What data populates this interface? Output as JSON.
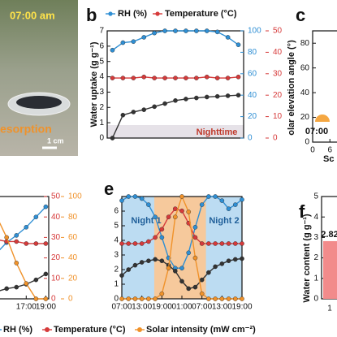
{
  "photo": {
    "time": "07:00 am",
    "label": "esorption",
    "scale": "1 cm"
  },
  "legend": [
    {
      "name": "RH (%)",
      "color": "#2f8fd4"
    },
    {
      "name": "Temperature (°C)",
      "color": "#d63a3a"
    },
    {
      "name": "Solar intensity (mW cm⁻²)",
      "color": "#f0922a"
    }
  ],
  "chart_data": [
    {
      "type": "line",
      "panel": "b",
      "ylabel": "Water uptake (g g⁻¹)",
      "annotations": [
        "Nighttime"
      ],
      "x": [
        0,
        1,
        2,
        3,
        4,
        5,
        6,
        7,
        8,
        9,
        10,
        11,
        12
      ],
      "xlim": [
        -0.5,
        12.5
      ],
      "ylim": [
        0,
        7
      ],
      "yticks": [
        0,
        1,
        2,
        3,
        4,
        5,
        6,
        7
      ],
      "y2lim": [
        0,
        100
      ],
      "y2ticks": [
        0,
        20,
        40,
        60,
        80,
        100
      ],
      "y2color": "#2f8fd4",
      "y3lim": [
        0,
        50
      ],
      "y3ticks": [
        0,
        10,
        20,
        30,
        40,
        50
      ],
      "y3color": "#d63a3a",
      "series": [
        {
          "name": "RH (%)",
          "color": "#2f8fd4",
          "axis": "y2",
          "values": [
            82,
            89,
            90,
            94,
            98,
            100,
            100,
            100,
            100,
            100,
            99,
            94,
            87
          ]
        },
        {
          "name": "Temperature (°C)",
          "color": "#d63a3a",
          "axis": "y3",
          "values": [
            28,
            28,
            28,
            28.5,
            28,
            28,
            28,
            28,
            28,
            28.5,
            28,
            28,
            28.5
          ]
        },
        {
          "color": "#333333",
          "axis": "y",
          "values": [
            0,
            1.5,
            1.7,
            1.85,
            2.05,
            2.25,
            2.45,
            2.55,
            2.62,
            2.68,
            2.72,
            2.76,
            2.8
          ]
        }
      ]
    },
    {
      "type": "line",
      "panel": "c",
      "ylabel": "olar elevation angle (°)",
      "xlabel": "Sc",
      "annotations": [
        "07:00"
      ],
      "xlim": [
        0,
        24
      ],
      "xticks": [
        0,
        6
      ],
      "ylim": [
        0,
        90
      ],
      "yticks": [
        0,
        20,
        40,
        60,
        80
      ],
      "series": []
    },
    {
      "type": "line",
      "x": [
        13,
        14,
        15,
        16,
        17,
        18,
        19
      ],
      "xlim": [
        11,
        19.3
      ],
      "xticks": [
        {
          "value": 17,
          "label": "17:00"
        },
        {
          "value": 19,
          "label": "19:00"
        }
      ],
      "ylim": [
        0,
        7
      ],
      "y2lim": [
        0,
        100
      ],
      "y2ticks": [
        0,
        20,
        40,
        60,
        80,
        100
      ],
      "y2color": "#f0922a",
      "y3lim": [
        0,
        50
      ],
      "y3ticks": [
        0,
        10,
        20,
        30,
        40,
        50
      ],
      "y3color": "#d63a3a",
      "series": [
        {
          "color": "#2f8fd4",
          "axis": "y2",
          "values": [
            35,
            45,
            55,
            62,
            70,
            80,
            90
          ]
        },
        {
          "color": "#d63a3a",
          "axis": "y3",
          "values": [
            30,
            29,
            28,
            28,
            27,
            27,
            27
          ]
        },
        {
          "color": "#333333",
          "axis": "y",
          "values": [
            0.3,
            0.5,
            0.7,
            0.8,
            1.0,
            1.3,
            1.7
          ]
        },
        {
          "color": "#f0922a",
          "axis": "y2",
          "values": [
            90,
            80,
            60,
            35,
            15,
            0,
            0
          ]
        }
      ]
    },
    {
      "type": "line",
      "panel": "e",
      "annotations": [
        "Night 1",
        "Night 2"
      ],
      "x": [
        0,
        2,
        4,
        6,
        8,
        10,
        12,
        14,
        16,
        18,
        20,
        22,
        24,
        26,
        28,
        30,
        32,
        34,
        36
      ],
      "xlim": [
        0,
        36
      ],
      "xticks": [
        {
          "value": 0,
          "label": "07:00"
        },
        {
          "value": 6,
          "label": "13:00"
        },
        {
          "value": 12,
          "label": "19:00"
        },
        {
          "value": 18,
          "label": "01:00"
        },
        {
          "value": 24,
          "label": "07:00"
        },
        {
          "value": 30,
          "label": "13:00"
        },
        {
          "value": 36,
          "label": "19:00"
        }
      ],
      "ylim": [
        0,
        7
      ],
      "yticks": [
        0,
        1,
        2,
        3,
        4,
        5,
        6
      ],
      "y2lim": [
        0,
        100
      ],
      "y3lim": [
        0,
        50
      ],
      "series": [
        {
          "color": "#2f8fd4",
          "axis": "y2",
          "values": [
            96,
            100,
            100,
            98,
            92,
            80,
            60,
            40,
            30,
            30,
            45,
            70,
            92,
            100,
            100,
            96,
            88,
            92,
            97
          ]
        },
        {
          "color": "#d63a3a",
          "axis": "y3",
          "values": [
            27,
            27,
            27,
            27,
            28,
            30,
            34,
            40,
            44,
            43,
            37,
            30,
            27,
            27,
            27,
            27,
            27,
            27,
            27
          ]
        },
        {
          "color": "#333333",
          "axis": "y",
          "values": [
            1.6,
            2.0,
            2.3,
            2.5,
            2.6,
            2.7,
            2.6,
            2.3,
            1.9,
            1.2,
            0.7,
            0.8,
            1.3,
            1.8,
            2.2,
            2.4,
            2.6,
            2.7,
            2.75
          ]
        },
        {
          "color": "#f0922a",
          "axis": "y2",
          "values": [
            0,
            0,
            0,
            0,
            0,
            0,
            5,
            30,
            80,
            100,
            85,
            40,
            5,
            0,
            0,
            0,
            0,
            0,
            0
          ]
        }
      ]
    },
    {
      "type": "bar",
      "panel": "f",
      "ylabel": "Water content (g g⁻¹)",
      "categories": [
        "1"
      ],
      "values": [
        2.82
      ],
      "value_labels": [
        "2.82"
      ],
      "color": "#f28b8b",
      "ylim": [
        0,
        5
      ],
      "yticks": [
        0,
        1,
        2,
        3,
        4,
        5
      ]
    }
  ]
}
